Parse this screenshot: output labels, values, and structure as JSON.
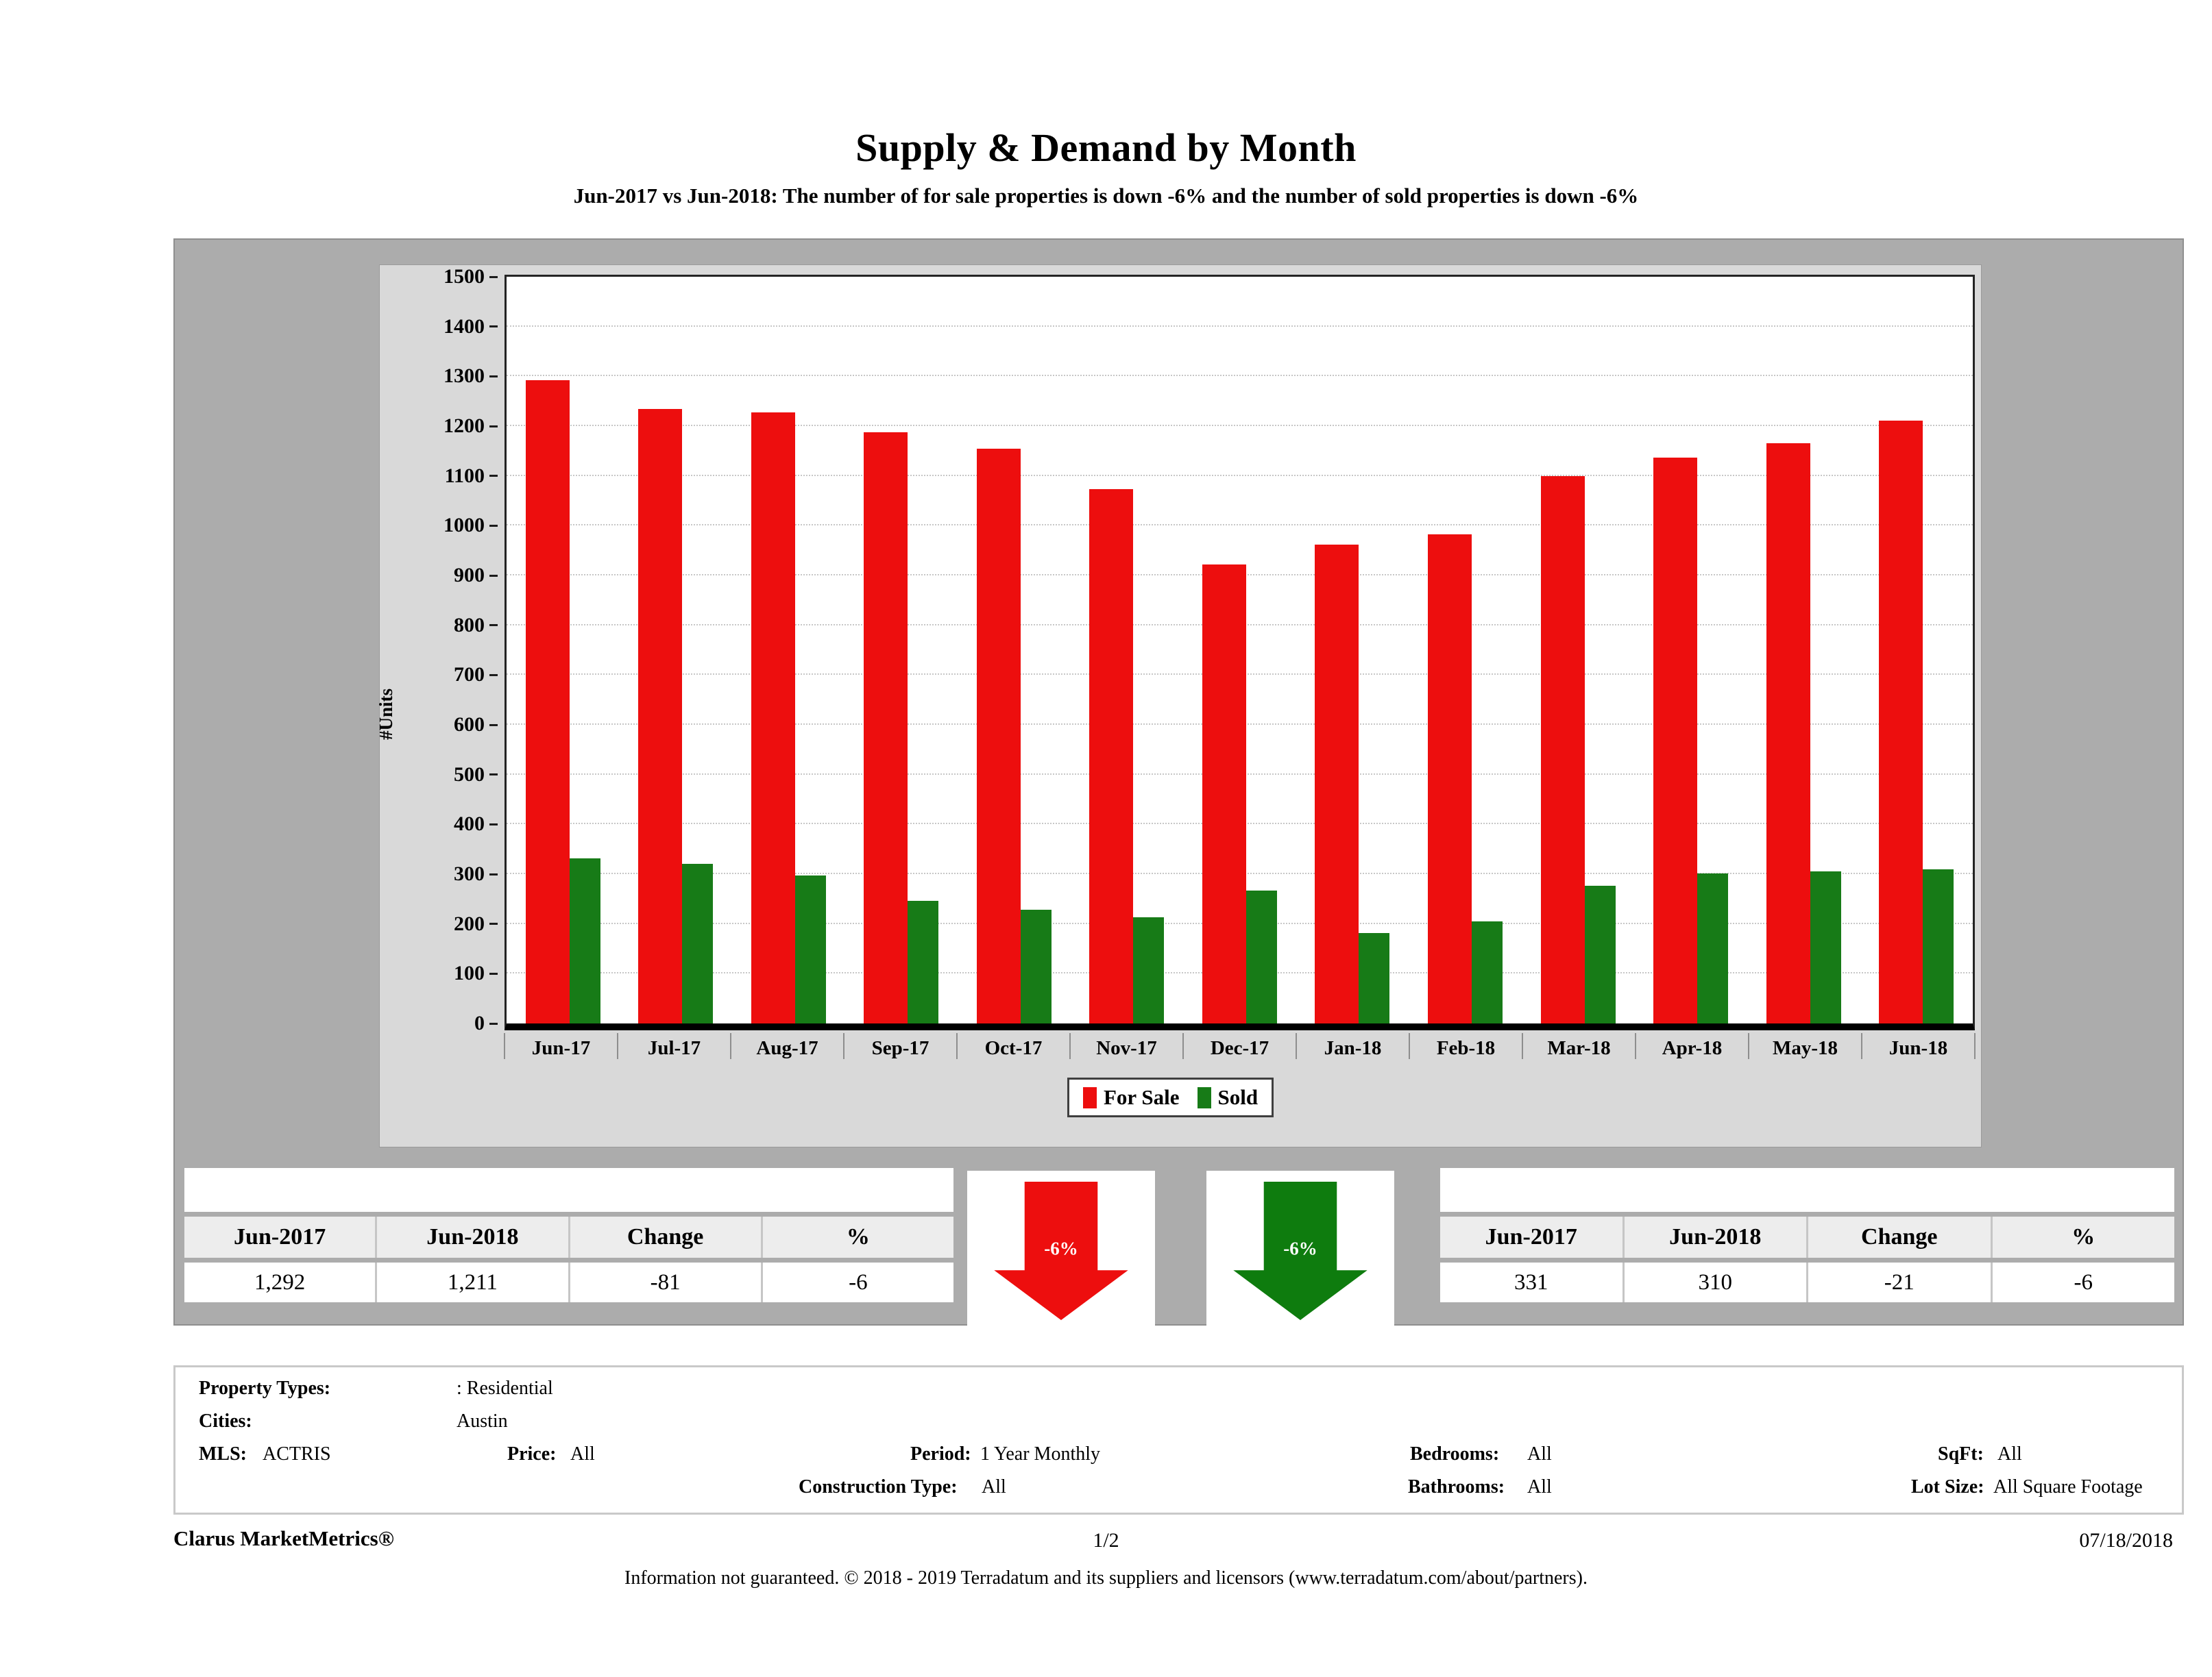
{
  "title": "Supply & Demand by Month",
  "subtitle": "Jun-2017 vs Jun-2018: The number of for sale properties is down -6% and the number of sold properties is down -6%",
  "chart_data": {
    "type": "bar",
    "title": "Supply & Demand by Month",
    "xlabel": "",
    "ylabel": "#Units",
    "ylim": [
      0,
      1500
    ],
    "ytick_step": 100,
    "grid": "horizontal dotted",
    "legend_position": "bottom-center",
    "categories": [
      "Jun-17",
      "Jul-17",
      "Aug-17",
      "Sep-17",
      "Oct-17",
      "Nov-17",
      "Dec-17",
      "Jan-18",
      "Feb-18",
      "Mar-18",
      "Apr-18",
      "May-18",
      "Jun-18"
    ],
    "series": [
      {
        "name": "For Sale",
        "color": "#ED0E0E",
        "values": [
          1292,
          1235,
          1228,
          1187,
          1155,
          1073,
          922,
          962,
          983,
          1100,
          1137,
          1165,
          1211
        ]
      },
      {
        "name": "Sold",
        "color": "#177B17",
        "values": [
          331,
          320,
          297,
          246,
          228,
          214,
          267,
          182,
          205,
          277,
          302,
          306,
          310
        ]
      }
    ]
  },
  "for_sale_table": {
    "headers": [
      "Jun-2017",
      "Jun-2018",
      "Change",
      "%"
    ],
    "values": [
      "1,292",
      "1,211",
      "-81",
      "-6"
    ]
  },
  "sold_table": {
    "headers": [
      "Jun-2017",
      "Jun-2018",
      "Change",
      "%"
    ],
    "values": [
      "331",
      "310",
      "-21",
      "-6"
    ]
  },
  "arrows": {
    "for_sale": {
      "label": "-6%",
      "color": "#ED0E0E",
      "direction": "down"
    },
    "sold": {
      "label": "-6%",
      "color": "#0E7C0E",
      "direction": "down"
    }
  },
  "filters": {
    "property_types_label": "Property Types:",
    "property_types_value": ": Residential",
    "cities_label": "Cities:",
    "cities_value": "Austin",
    "mls_label": "MLS:",
    "mls_value": "ACTRIS",
    "price_label": "Price:",
    "price_value": "All",
    "period_label": "Period:",
    "period_value": "1 Year Monthly",
    "construction_label": "Construction Type:",
    "construction_value": "All",
    "bedrooms_label": "Bedrooms:",
    "bedrooms_value": "All",
    "bathrooms_label": "Bathrooms:",
    "bathrooms_value": "All",
    "sqft_label": "SqFt:",
    "sqft_value": "All",
    "lot_size_label": "Lot Size:",
    "lot_size_value": "All Square Footage"
  },
  "footer": {
    "brand": "Clarus MarketMetrics®",
    "page": "1/2",
    "date": "07/18/2018",
    "disclaimer": "Information not guaranteed. © 2018 - 2019 Terradatum and its suppliers and licensors (www.terradatum.com/about/partners)."
  }
}
